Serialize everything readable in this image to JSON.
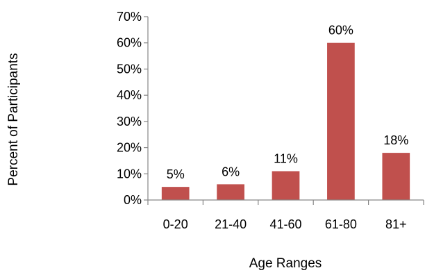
{
  "chart_data": {
    "type": "bar",
    "categories": [
      "0-20",
      "21-40",
      "41-60",
      "61-80",
      "81+"
    ],
    "values": [
      5,
      6,
      11,
      60,
      18
    ],
    "data_labels": [
      "5%",
      "6%",
      "11%",
      "60%",
      "18%"
    ],
    "title": "",
    "xlabel": "Age Ranges",
    "ylabel": "Percent of Participants",
    "ylim": [
      0,
      70
    ],
    "yticks": [
      0,
      10,
      20,
      30,
      40,
      50,
      60,
      70
    ],
    "ytick_labels": [
      "0%",
      "10%",
      "20%",
      "30%",
      "40%",
      "50%",
      "60%",
      "70%"
    ],
    "grid": false,
    "legend": "none",
    "bar_color": "#c0504d",
    "axis_color": "#868686"
  }
}
